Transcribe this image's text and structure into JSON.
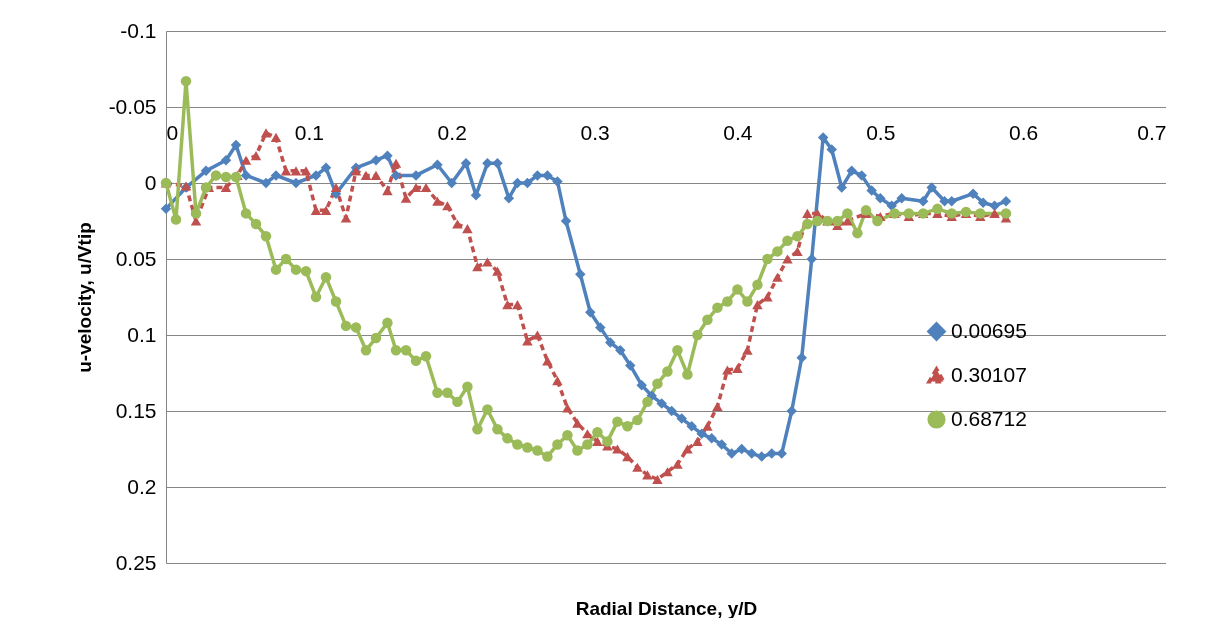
{
  "chart_data": {
    "type": "line",
    "xlabel": "Radial Distance, y/D",
    "ylabel": "u-velocity, u/Vtip",
    "xlim": [
      0,
      0.7
    ],
    "xticks": [
      0,
      0.1,
      0.2,
      0.3,
      0.4,
      0.5,
      0.6,
      0.7
    ],
    "ylim": [
      0.25,
      -0.1
    ],
    "yticks": [
      -0.1,
      -0.05,
      0,
      0.05,
      0.1,
      0.15,
      0.2,
      0.25
    ],
    "grid": "y",
    "legend": "right",
    "series": [
      {
        "name": "0.00695",
        "color": "#4f81bd",
        "marker": "diamond",
        "line_style": "solid",
        "x": [
          0,
          0.014,
          0.028,
          0.042,
          0.049,
          0.056,
          0.07,
          0.077,
          0.091,
          0.105,
          0.112,
          0.119,
          0.133,
          0.147,
          0.155,
          0.161,
          0.175,
          0.19,
          0.2,
          0.21,
          0.217,
          0.225,
          0.232,
          0.24,
          0.246,
          0.253,
          0.26,
          0.267,
          0.274,
          0.28,
          0.29,
          0.297,
          0.304,
          0.311,
          0.318,
          0.325,
          0.333,
          0.34,
          0.347,
          0.354,
          0.361,
          0.368,
          0.375,
          0.382,
          0.389,
          0.396,
          0.403,
          0.41,
          0.417,
          0.424,
          0.431,
          0.438,
          0.445,
          0.452,
          0.46,
          0.466,
          0.473,
          0.48,
          0.487,
          0.494,
          0.5,
          0.508,
          0.515,
          0.53,
          0.536,
          0.545,
          0.55,
          0.565,
          0.572,
          0.58,
          0.588
        ],
        "values": [
          0.017,
          0.003,
          -0.008,
          -0.015,
          -0.025,
          -0.005,
          0,
          -0.005,
          0,
          -0.005,
          -0.01,
          0.007,
          -0.01,
          -0.015,
          -0.018,
          -0.005,
          -0.005,
          -0.012,
          0,
          -0.013,
          0.008,
          -0.013,
          -0.013,
          0.01,
          0,
          0,
          -0.005,
          -0.005,
          -0.001,
          0.025,
          0.06,
          0.085,
          0.095,
          0.105,
          0.11,
          0.12,
          0.133,
          0.14,
          0.145,
          0.15,
          0.155,
          0.16,
          0.165,
          0.168,
          0.172,
          0.178,
          0.175,
          0.178,
          0.18,
          0.178,
          0.178,
          0.15,
          0.115,
          0.05,
          -0.03,
          -0.022,
          0.003,
          -0.008,
          -0.005,
          0.005,
          0.01,
          0.015,
          0.01,
          0.012,
          0.003,
          0.012,
          0.012,
          0.007,
          0.013,
          0.015,
          0.012
        ]
      },
      {
        "name": "0.30107",
        "color": "#c0504d",
        "marker": "triangle",
        "line_style": "dashed",
        "x": [
          0,
          0.014,
          0.021,
          0.03,
          0.042,
          0.05,
          0.056,
          0.063,
          0.07,
          0.077,
          0.084,
          0.091,
          0.098,
          0.105,
          0.112,
          0.119,
          0.126,
          0.133,
          0.14,
          0.147,
          0.155,
          0.161,
          0.168,
          0.175,
          0.182,
          0.19,
          0.197,
          0.204,
          0.211,
          0.218,
          0.225,
          0.232,
          0.239,
          0.246,
          0.253,
          0.26,
          0.267,
          0.274,
          0.281,
          0.288,
          0.295,
          0.302,
          0.309,
          0.316,
          0.323,
          0.33,
          0.337,
          0.344,
          0.351,
          0.358,
          0.365,
          0.372,
          0.379,
          0.386,
          0.393,
          0.4,
          0.407,
          0.414,
          0.421,
          0.428,
          0.435,
          0.442,
          0.449,
          0.456,
          0.463,
          0.47,
          0.477,
          0.49,
          0.5,
          0.51,
          0.52,
          0.53,
          0.54,
          0.55,
          0.56,
          0.57,
          0.58,
          0.588
        ],
        "values": [
          0,
          0.002,
          0.025,
          0.003,
          0.003,
          -0.005,
          -0.015,
          -0.018,
          -0.033,
          -0.03,
          -0.008,
          -0.008,
          -0.008,
          0.018,
          0.018,
          0.003,
          0.023,
          -0.008,
          -0.005,
          -0.005,
          0.005,
          -0.013,
          0.01,
          0.003,
          0.003,
          0.012,
          0.015,
          0.027,
          0.03,
          0.055,
          0.052,
          0.058,
          0.08,
          0.08,
          0.104,
          0.1,
          0.117,
          0.13,
          0.148,
          0.158,
          0.165,
          0.17,
          0.173,
          0.175,
          0.18,
          0.187,
          0.192,
          0.195,
          0.19,
          0.185,
          0.175,
          0.17,
          0.16,
          0.147,
          0.123,
          0.122,
          0.11,
          0.08,
          0.075,
          0.062,
          0.05,
          0.045,
          0.02,
          0.02,
          0.025,
          0.028,
          0.025,
          0.02,
          0.022,
          0.02,
          0.022,
          0.02,
          0.02,
          0.022,
          0.02,
          0.022,
          0.02,
          0.023
        ]
      },
      {
        "name": "0.68712",
        "color": "#9bbb59",
        "marker": "circle",
        "line_style": "solid",
        "x": [
          0,
          0.007,
          0.014,
          0.021,
          0.028,
          0.035,
          0.042,
          0.049,
          0.056,
          0.063,
          0.07,
          0.077,
          0.084,
          0.091,
          0.098,
          0.105,
          0.112,
          0.119,
          0.126,
          0.133,
          0.14,
          0.147,
          0.155,
          0.161,
          0.168,
          0.175,
          0.182,
          0.19,
          0.197,
          0.204,
          0.211,
          0.218,
          0.225,
          0.232,
          0.239,
          0.246,
          0.253,
          0.26,
          0.267,
          0.274,
          0.281,
          0.288,
          0.295,
          0.302,
          0.309,
          0.316,
          0.323,
          0.33,
          0.337,
          0.344,
          0.351,
          0.358,
          0.365,
          0.372,
          0.379,
          0.386,
          0.393,
          0.4,
          0.407,
          0.414,
          0.421,
          0.428,
          0.435,
          0.442,
          0.449,
          0.456,
          0.463,
          0.47,
          0.477,
          0.484,
          0.49,
          0.498,
          0.51,
          0.52,
          0.53,
          0.54,
          0.55,
          0.56,
          0.57,
          0.588
        ],
        "values": [
          0,
          0.024,
          -0.067,
          0.02,
          0.003,
          -0.005,
          -0.004,
          -0.004,
          0.02,
          0.027,
          0.035,
          0.057,
          0.05,
          0.057,
          0.058,
          0.075,
          0.062,
          0.078,
          0.094,
          0.095,
          0.11,
          0.102,
          0.092,
          0.11,
          0.11,
          0.117,
          0.114,
          0.138,
          0.138,
          0.144,
          0.134,
          0.162,
          0.149,
          0.162,
          0.168,
          0.172,
          0.174,
          0.176,
          0.18,
          0.172,
          0.166,
          0.176,
          0.172,
          0.164,
          0.17,
          0.157,
          0.16,
          0.156,
          0.144,
          0.132,
          0.124,
          0.11,
          0.126,
          0.1,
          0.09,
          0.082,
          0.078,
          0.07,
          0.078,
          0.067,
          0.05,
          0.045,
          0.038,
          0.035,
          0.027,
          0.025,
          0.025,
          0.025,
          0.02,
          0.033,
          0.018,
          0.025,
          0.02,
          0.02,
          0.02,
          0.017,
          0.02,
          0.019,
          0.02,
          0.02
        ]
      }
    ]
  }
}
